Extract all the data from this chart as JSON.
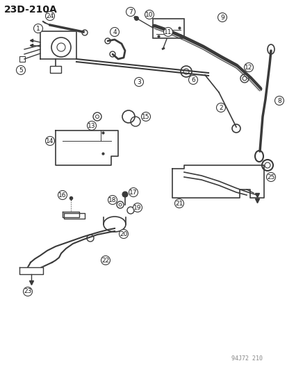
{
  "title": "23D-210A",
  "footer": "94J72 210",
  "bg_color": "#ffffff",
  "line_color": "#3a3a3a",
  "text_color": "#1a1a1a",
  "title_fontsize": 10,
  "label_fontsize": 6.5,
  "fig_width": 4.14,
  "fig_height": 5.33,
  "dpi": 100
}
